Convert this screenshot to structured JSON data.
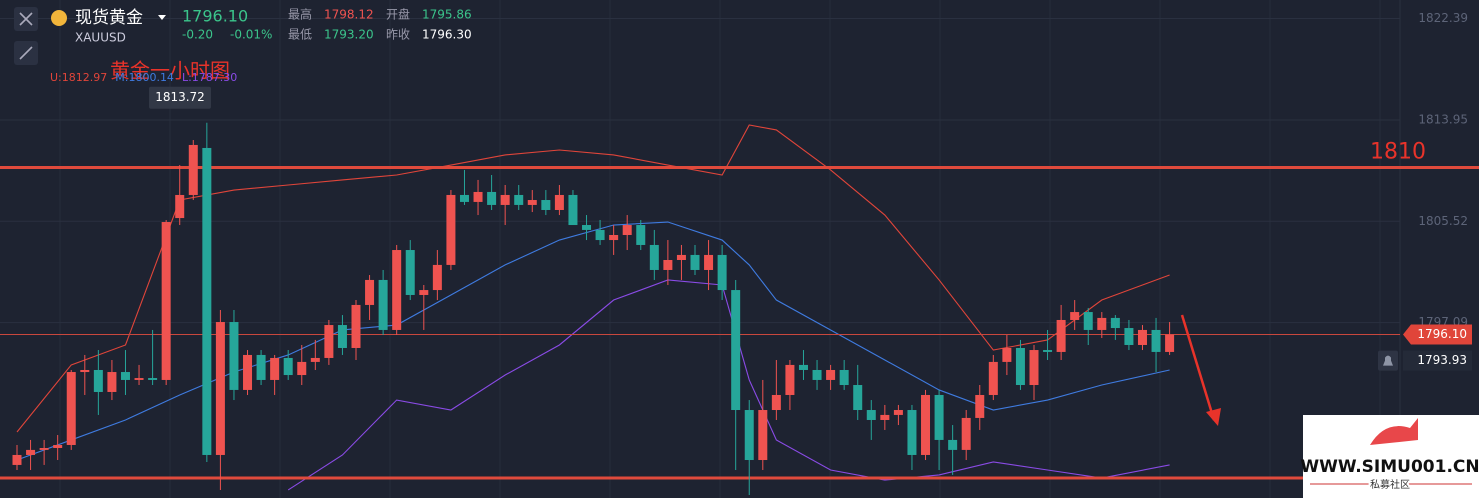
{
  "header": {
    "name": "现货黄金",
    "symbol": "XAUUSD",
    "price": "1796.10",
    "change": "-0.20",
    "change_pct": "-0.01%",
    "high_label": "最高",
    "high": "1798.12",
    "open_label": "开盘",
    "open": "1795.86",
    "low_label": "最低",
    "low": "1793.20",
    "prev_close_label": "昨收",
    "prev_close": "1796.30"
  },
  "watermark": {
    "site": "WWW.SIMU001.CN",
    "tagline": "私募社区"
  },
  "chart_data": {
    "type": "candlestick",
    "title": "黄金一小时图",
    "up_color": "#ef5350",
    "down_color": "#26a69a",
    "ylim": [
      1782.5,
      1823.93
    ],
    "yticks": [
      1822.39,
      1813.95,
      1805.52,
      1797.09
    ],
    "grid": true,
    "peak_label": 1813.72,
    "marked_level": 1810,
    "support_level": 1784.16,
    "last_price": {
      "value": 1796.1,
      "label": "1796.10"
    },
    "alert_price": 1793.93,
    "candles": [
      [
        1785.25,
        1786.91,
        1784.83,
        1786.08
      ],
      [
        1786.08,
        1787.33,
        1784.83,
        1786.5
      ],
      [
        1786.5,
        1787.33,
        1785.25,
        1786.66
      ],
      [
        1786.66,
        1787.74,
        1785.66,
        1786.91
      ],
      [
        1786.91,
        1793.15,
        1786.5,
        1792.98
      ],
      [
        1792.98,
        1794.4,
        1791.07,
        1793.15
      ],
      [
        1793.15,
        1794.81,
        1789.41,
        1791.32
      ],
      [
        1791.32,
        1793.98,
        1790.65,
        1792.98
      ],
      [
        1792.98,
        1794.81,
        1791.07,
        1792.32
      ],
      [
        1792.32,
        1793.57,
        1791.9,
        1792.48
      ],
      [
        1792.48,
        1796.48,
        1791.9,
        1792.32
      ],
      [
        1792.32,
        1805.63,
        1791.9,
        1805.46
      ],
      [
        1805.79,
        1810.2,
        1805.21,
        1807.71
      ],
      [
        1807.71,
        1812.28,
        1807.29,
        1811.87
      ],
      [
        1811.62,
        1813.72,
        1785.5,
        1786.08
      ],
      [
        1786.08,
        1798.14,
        1783.17,
        1797.14
      ],
      [
        1797.14,
        1798.14,
        1790.65,
        1791.49
      ],
      [
        1791.49,
        1794.81,
        1791.07,
        1794.4
      ],
      [
        1794.4,
        1794.81,
        1791.9,
        1792.32
      ],
      [
        1792.32,
        1794.4,
        1791.07,
        1794.15
      ],
      [
        1794.15,
        1794.81,
        1792.32,
        1792.73
      ],
      [
        1792.73,
        1795.23,
        1791.9,
        1793.82
      ],
      [
        1793.82,
        1795.65,
        1793.15,
        1794.15
      ],
      [
        1794.15,
        1797.31,
        1793.57,
        1796.89
      ],
      [
        1796.89,
        1797.72,
        1794.4,
        1794.98
      ],
      [
        1794.98,
        1798.97,
        1793.98,
        1798.56
      ],
      [
        1798.56,
        1801.05,
        1797.31,
        1800.64
      ],
      [
        1800.64,
        1801.47,
        1796.06,
        1796.48
      ],
      [
        1796.48,
        1803.55,
        1796.06,
        1803.13
      ],
      [
        1803.13,
        1803.96,
        1798.97,
        1799.39
      ],
      [
        1799.39,
        1800.22,
        1796.48,
        1799.8
      ],
      [
        1799.8,
        1803.13,
        1798.97,
        1801.89
      ],
      [
        1801.89,
        1808.12,
        1801.47,
        1807.71
      ],
      [
        1807.71,
        1809.79,
        1806.88,
        1807.13
      ],
      [
        1807.13,
        1808.96,
        1806.04,
        1807.96
      ],
      [
        1807.96,
        1809.37,
        1806.46,
        1806.88
      ],
      [
        1806.88,
        1808.54,
        1805.21,
        1807.71
      ],
      [
        1807.71,
        1808.54,
        1806.46,
        1806.88
      ],
      [
        1806.88,
        1808.12,
        1806.29,
        1807.29
      ],
      [
        1807.29,
        1808.12,
        1806.04,
        1806.46
      ],
      [
        1806.46,
        1808.54,
        1806.04,
        1807.71
      ],
      [
        1807.71,
        1808.12,
        1805.21,
        1805.21
      ],
      [
        1805.21,
        1806.04,
        1803.96,
        1804.8
      ],
      [
        1804.8,
        1805.63,
        1803.55,
        1803.96
      ],
      [
        1803.96,
        1805.21,
        1802.72,
        1804.38
      ],
      [
        1804.38,
        1806.04,
        1803.13,
        1805.21
      ],
      [
        1805.21,
        1805.63,
        1803.13,
        1803.55
      ],
      [
        1803.55,
        1804.8,
        1800.64,
        1801.47
      ],
      [
        1801.47,
        1803.96,
        1800.22,
        1802.3
      ],
      [
        1802.3,
        1803.55,
        1800.64,
        1802.72
      ],
      [
        1802.72,
        1803.55,
        1801.05,
        1801.47
      ],
      [
        1801.47,
        1803.96,
        1799.8,
        1802.72
      ],
      [
        1802.72,
        1803.55,
        1798.97,
        1799.8
      ],
      [
        1799.8,
        1800.64,
        1784.83,
        1789.82
      ],
      [
        1789.82,
        1790.65,
        1782.75,
        1785.66
      ],
      [
        1785.66,
        1792.32,
        1784.83,
        1789.82
      ],
      [
        1789.82,
        1793.98,
        1788.99,
        1791.07
      ],
      [
        1791.07,
        1793.98,
        1789.82,
        1793.57
      ],
      [
        1793.57,
        1794.81,
        1792.32,
        1793.15
      ],
      [
        1793.15,
        1793.98,
        1791.49,
        1792.32
      ],
      [
        1792.32,
        1793.57,
        1791.49,
        1793.15
      ],
      [
        1793.15,
        1793.98,
        1791.49,
        1791.9
      ],
      [
        1791.9,
        1793.57,
        1788.99,
        1789.82
      ],
      [
        1789.82,
        1790.65,
        1787.33,
        1788.99
      ],
      [
        1788.99,
        1790.24,
        1788.16,
        1789.41
      ],
      [
        1789.41,
        1790.24,
        1788.57,
        1789.82
      ],
      [
        1789.82,
        1790.24,
        1784.83,
        1786.08
      ],
      [
        1786.08,
        1791.49,
        1785.66,
        1791.07
      ],
      [
        1791.07,
        1791.49,
        1784.83,
        1787.33
      ],
      [
        1787.33,
        1788.57,
        1784.42,
        1786.5
      ],
      [
        1786.5,
        1789.82,
        1785.66,
        1789.16
      ],
      [
        1789.16,
        1791.9,
        1788.16,
        1791.07
      ],
      [
        1791.07,
        1794.4,
        1790.65,
        1793.82
      ],
      [
        1793.82,
        1796.06,
        1792.73,
        1794.98
      ],
      [
        1794.98,
        1795.65,
        1791.49,
        1791.9
      ],
      [
        1791.9,
        1795.23,
        1790.65,
        1794.81
      ],
      [
        1794.81,
        1796.48,
        1793.98,
        1794.65
      ],
      [
        1794.65,
        1798.56,
        1793.98,
        1797.31
      ],
      [
        1797.31,
        1798.97,
        1796.48,
        1797.97
      ],
      [
        1797.97,
        1798.31,
        1795.23,
        1796.48
      ],
      [
        1796.48,
        1797.97,
        1795.81,
        1797.48
      ],
      [
        1797.48,
        1797.72,
        1795.65,
        1796.64
      ],
      [
        1796.64,
        1797.31,
        1794.81,
        1795.23
      ],
      [
        1795.23,
        1796.89,
        1794.81,
        1796.48
      ],
      [
        1796.48,
        1797.48,
        1792.98,
        1794.65
      ],
      [
        1794.65,
        1797.14,
        1794.4,
        1796.1
      ]
    ],
    "band_x": [
      0,
      4,
      8,
      12,
      16,
      20,
      24,
      28,
      32,
      36,
      40,
      44,
      48,
      52,
      54,
      56,
      60,
      64,
      68,
      72,
      76,
      80,
      85
    ],
    "series": [
      {
        "name": "U:1812.97",
        "color": "#e0453a",
        "values": [
          1787.99,
          1793.57,
          1795.23,
          1807.29,
          1808.12,
          1808.54,
          1808.96,
          1809.37,
          1810.2,
          1811.04,
          1811.45,
          1811.04,
          1810.2,
          1809.37,
          1813.53,
          1813.12,
          1809.79,
          1806.04,
          1800.64,
          1794.81,
          1795.65,
          1798.97,
          1801.05
        ]
      },
      {
        "name": "M:1800.14",
        "color": "#3f7be0",
        "values": [
          1785.66,
          1787.33,
          1788.99,
          1791.07,
          1792.98,
          1794.4,
          1796.48,
          1796.89,
          1799.39,
          1801.89,
          1803.96,
          1805.21,
          1805.46,
          1803.96,
          1801.89,
          1798.97,
          1796.48,
          1793.98,
          1791.49,
          1789.82,
          1790.65,
          1791.9,
          1793.15
        ]
      },
      {
        "name": "L:1787.30",
        "color": "#8a4be6",
        "values": [
          null,
          null,
          null,
          null,
          null,
          1783.17,
          1786.08,
          1790.65,
          1789.82,
          1792.73,
          1795.23,
          1798.97,
          1800.64,
          1800.22,
          1792.32,
          1787.33,
          1784.83,
          1783.99,
          1784.42,
          1785.5,
          1784.83,
          1784.16,
          1785.25
        ]
      }
    ]
  }
}
